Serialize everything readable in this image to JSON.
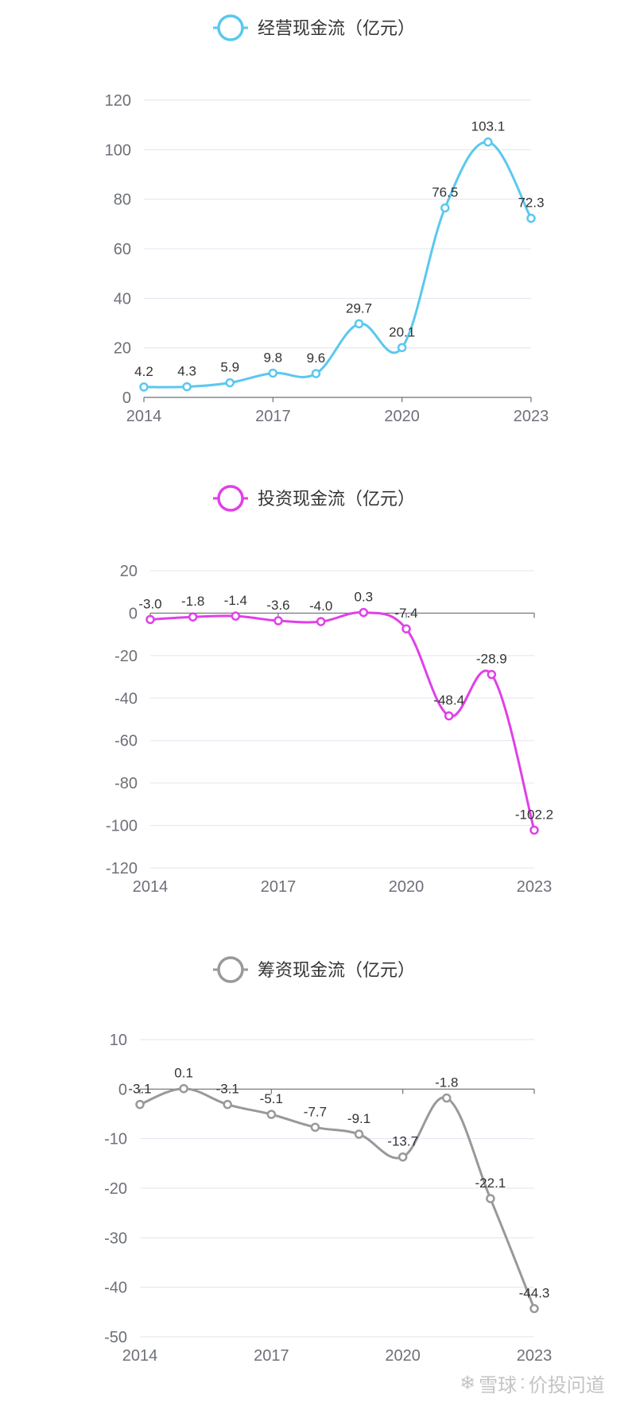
{
  "watermark": {
    "brand": "雪球",
    "separator": ":",
    "author": "价投问道"
  },
  "chart_data": [
    {
      "type": "line",
      "legend": "经营现金流（亿元）",
      "legend_placement": "top-center",
      "color": "#5ac8ef",
      "x": [
        "2014",
        "2015",
        "2016",
        "2017",
        "2018",
        "2019",
        "2020",
        "2021",
        "2022",
        "2023"
      ],
      "x_tick_labels": [
        "2014",
        "2017",
        "2020",
        "2023"
      ],
      "values": [
        4.2,
        4.3,
        5.9,
        9.8,
        9.6,
        29.7,
        20.1,
        76.5,
        103.1,
        72.3
      ],
      "labels": [
        "4.2",
        "4.3",
        "5.9",
        "9.8",
        "9.6",
        "29.7",
        "20.1",
        "76.5",
        "103.1",
        "72.3"
      ],
      "ylim": [
        0,
        120
      ],
      "yticks": [
        0,
        20,
        40,
        60,
        80,
        100,
        120
      ],
      "grid": true
    },
    {
      "type": "line",
      "legend": "投资现金流（亿元）",
      "legend_placement": "top-center",
      "color": "#e040e8",
      "x": [
        "2014",
        "2015",
        "2016",
        "2017",
        "2018",
        "2019",
        "2020",
        "2021",
        "2022",
        "2023"
      ],
      "x_tick_labels": [
        "2014",
        "2017",
        "2020",
        "2023"
      ],
      "values": [
        -3.0,
        -1.8,
        -1.4,
        -3.6,
        -4.0,
        0.3,
        -7.4,
        -48.4,
        -28.9,
        -102.2
      ],
      "labels": [
        "-3.0",
        "-1.8",
        "-1.4",
        "-3.6",
        "-4.0",
        "0.3",
        "-7.4",
        "-48.4",
        "-28.9",
        "-102.2"
      ],
      "ylim": [
        -120,
        20
      ],
      "yticks": [
        -120,
        -100,
        -80,
        -60,
        -40,
        -20,
        0,
        20
      ],
      "grid": true
    },
    {
      "type": "line",
      "legend": "筹资现金流（亿元）",
      "legend_placement": "top-center",
      "color": "#999999",
      "x": [
        "2014",
        "2015",
        "2016",
        "2017",
        "2018",
        "2019",
        "2020",
        "2021",
        "2022",
        "2023"
      ],
      "x_tick_labels": [
        "2014",
        "2017",
        "2020",
        "2023"
      ],
      "values": [
        -3.1,
        0.1,
        -3.1,
        -5.1,
        -7.7,
        -9.1,
        -13.7,
        -1.8,
        -22.1,
        -44.3
      ],
      "labels": [
        "-3.1",
        "0.1",
        "-3.1",
        "-5.1",
        "-7.7",
        "-9.1",
        "-13.7",
        "-1.8",
        "-22.1",
        "-44.3"
      ],
      "ylim": [
        -50,
        10
      ],
      "yticks": [
        -50,
        -40,
        -30,
        -20,
        -10,
        0,
        10
      ],
      "grid": true
    }
  ]
}
